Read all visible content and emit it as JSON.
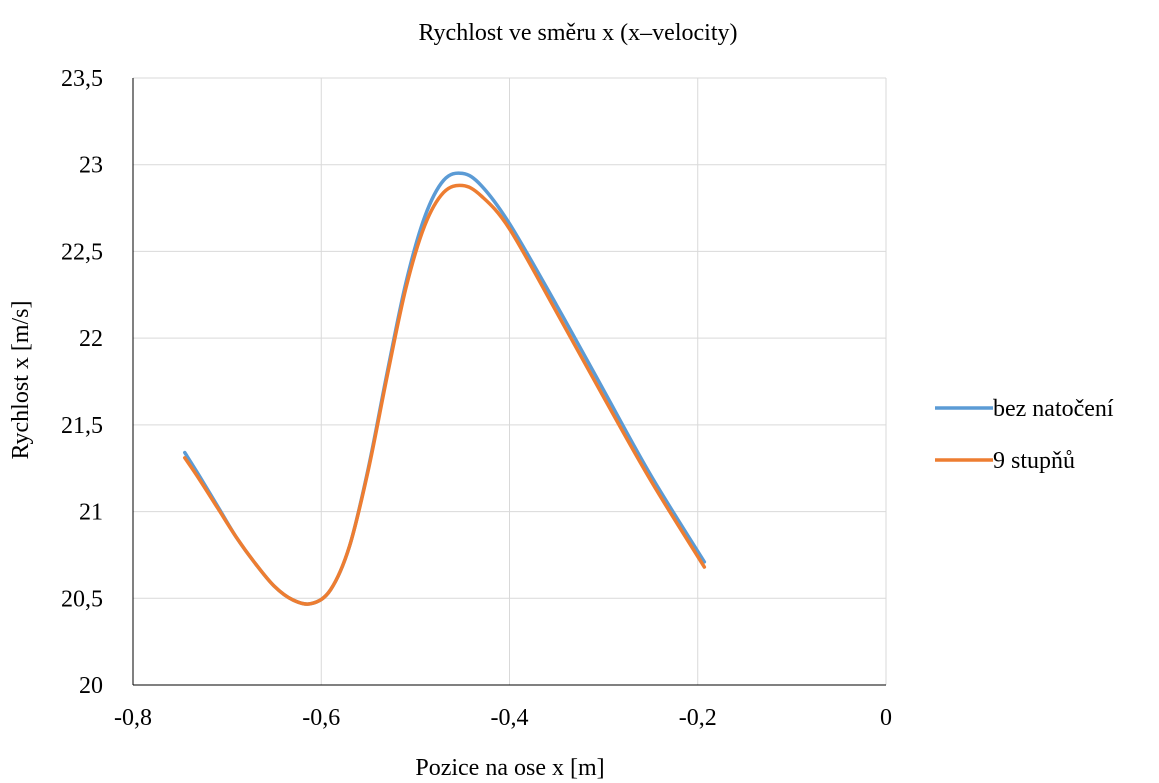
{
  "chart_data": {
    "type": "line",
    "title": "Rychlost ve směru x (x–velocity)",
    "xlabel": "Pozice na ose x [m]",
    "ylabel": "Rychlost x [m/s]",
    "xlim": [
      -0.8,
      0
    ],
    "ylim": [
      20,
      23.5
    ],
    "x_ticks": [
      "-0,8",
      "-0,6",
      "-0,4",
      "-0,2",
      "0"
    ],
    "y_ticks": [
      "20",
      "20,5",
      "21",
      "21,5",
      "22",
      "22,5",
      "23",
      "23,5"
    ],
    "grid": true,
    "legend_position": "right",
    "series": [
      {
        "name": "bez natočení",
        "color": "#5B9BD5",
        "points": [
          [
            -0.745,
            21.34
          ],
          [
            -0.73,
            21.21
          ],
          [
            -0.71,
            21.03
          ],
          [
            -0.69,
            20.85
          ],
          [
            -0.67,
            20.7
          ],
          [
            -0.65,
            20.57
          ],
          [
            -0.63,
            20.49
          ],
          [
            -0.61,
            20.47
          ],
          [
            -0.59,
            20.55
          ],
          [
            -0.57,
            20.8
          ],
          [
            -0.55,
            21.25
          ],
          [
            -0.53,
            21.8
          ],
          [
            -0.51,
            22.32
          ],
          [
            -0.49,
            22.7
          ],
          [
            -0.47,
            22.91
          ],
          [
            -0.45,
            22.95
          ],
          [
            -0.43,
            22.88
          ],
          [
            -0.4,
            22.66
          ],
          [
            -0.35,
            22.19
          ],
          [
            -0.3,
            21.7
          ],
          [
            -0.25,
            21.21
          ],
          [
            -0.193,
            20.71
          ]
        ]
      },
      {
        "name": "9 stupňů",
        "color": "#ED7D31",
        "points": [
          [
            -0.745,
            21.31
          ],
          [
            -0.73,
            21.19
          ],
          [
            -0.71,
            21.02
          ],
          [
            -0.69,
            20.85
          ],
          [
            -0.67,
            20.7
          ],
          [
            -0.65,
            20.57
          ],
          [
            -0.63,
            20.49
          ],
          [
            -0.61,
            20.47
          ],
          [
            -0.59,
            20.55
          ],
          [
            -0.57,
            20.8
          ],
          [
            -0.55,
            21.24
          ],
          [
            -0.53,
            21.78
          ],
          [
            -0.51,
            22.29
          ],
          [
            -0.49,
            22.65
          ],
          [
            -0.47,
            22.84
          ],
          [
            -0.45,
            22.88
          ],
          [
            -0.43,
            22.82
          ],
          [
            -0.4,
            22.63
          ],
          [
            -0.35,
            22.15
          ],
          [
            -0.3,
            21.66
          ],
          [
            -0.25,
            21.18
          ],
          [
            -0.193,
            20.68
          ]
        ]
      }
    ]
  }
}
